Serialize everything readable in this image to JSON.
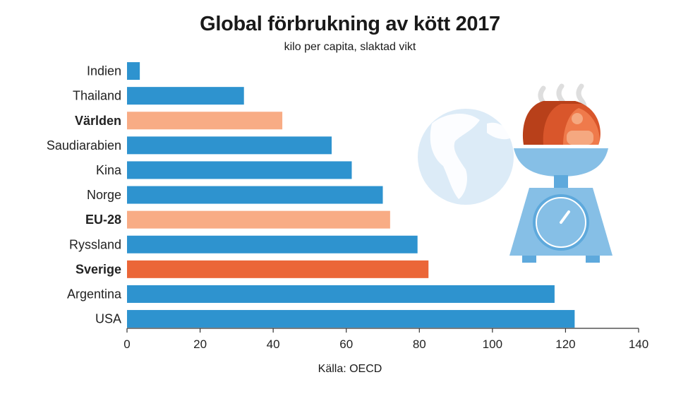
{
  "chart_data": {
    "type": "bar",
    "orientation": "horizontal",
    "title": "Global förbrukning av kött 2017",
    "subtitle": "kilo per capita, slaktad vikt",
    "source": "Källa: OECD",
    "categories": [
      "Indien",
      "Thailand",
      "Världen",
      "Saudiarabien",
      "Kina",
      "Norge",
      "EU-28",
      "Ryssland",
      "Sverige",
      "Argentina",
      "USA"
    ],
    "values": [
      3.5,
      32,
      42.5,
      56,
      61.5,
      70,
      72,
      79.5,
      82.5,
      117,
      122.5
    ],
    "highlight": [
      "normal",
      "normal",
      "aggregate",
      "normal",
      "normal",
      "normal",
      "aggregate",
      "normal",
      "focus",
      "normal",
      "normal"
    ],
    "xlim": [
      0,
      140
    ],
    "xticks": [
      0,
      20,
      40,
      60,
      80,
      100,
      120,
      140
    ],
    "grid": false,
    "colors": {
      "normal": "#2e93cf",
      "aggregate": "#f8ac85",
      "focus": "#eb6638",
      "axis": "#333333"
    }
  },
  "illustration": {
    "globe_icon": "globe-icon",
    "scale_icon": "kitchen-scale-with-meat-icon",
    "colors": {
      "globe": "#dcebf7",
      "scale": "#86bfe6",
      "scale_dark": "#5ea9dc",
      "meat_dark": "#b8401a",
      "meat_mid": "#d9562b",
      "meat_light": "#f5a880",
      "steam": "#dedede"
    }
  }
}
